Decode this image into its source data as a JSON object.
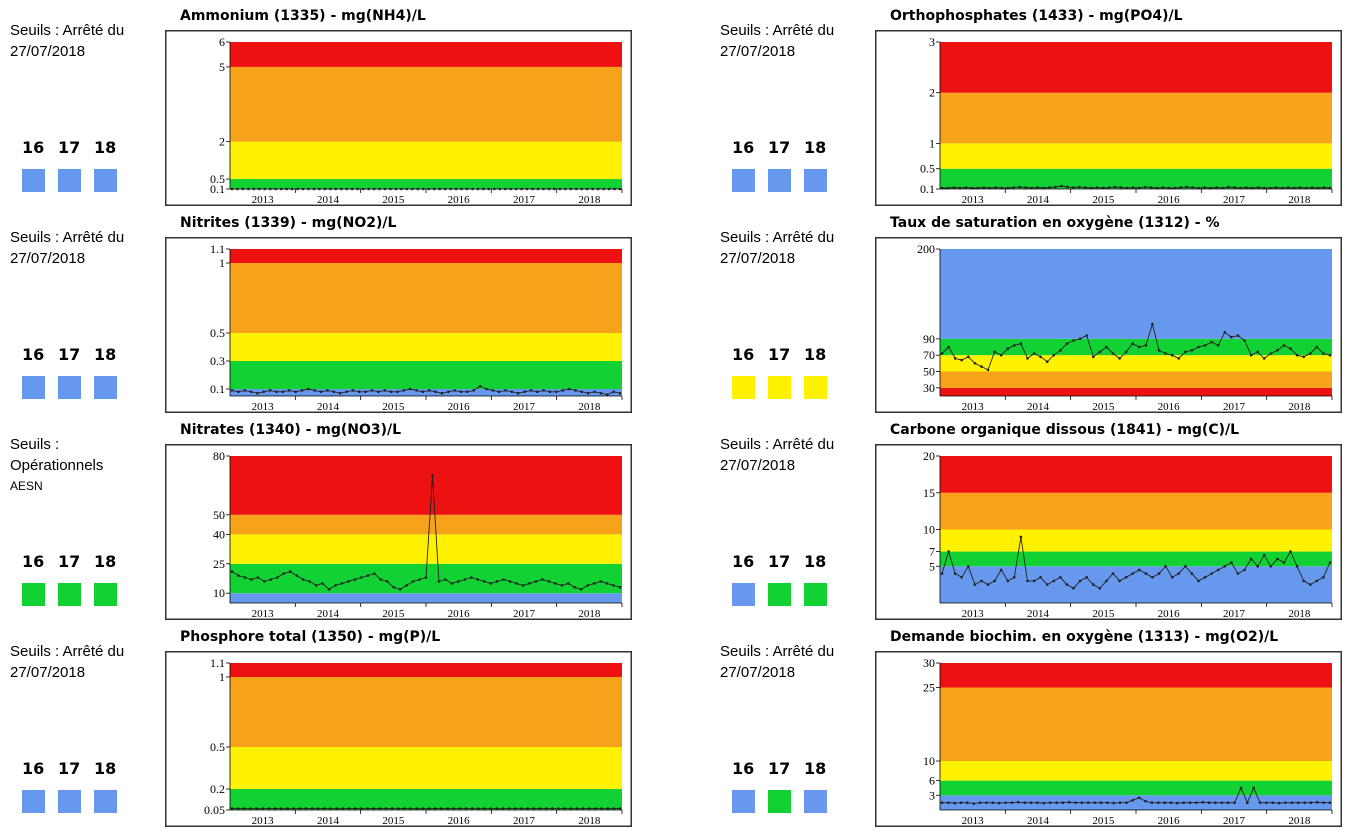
{
  "colors": {
    "red": "#ee1111",
    "orange": "#f7a21b",
    "yellow": "#fff200",
    "green": "#12d233",
    "blue": "#6699ee",
    "series": "#222222"
  },
  "years_header": [
    "16",
    "17",
    "18"
  ],
  "chart_data": [
    {
      "type": "line",
      "title": "Ammonium (1335) - mg(NH4)/L",
      "seuils": [
        "Seuils : Arrêté du",
        "27/07/2018"
      ],
      "square_colors": [
        "blue",
        "blue",
        "blue"
      ],
      "x_ticks": [
        "2013",
        "2014",
        "2015",
        "2016",
        "2017",
        "2018"
      ],
      "y_ticks": [
        "0.1",
        "0.5",
        "2",
        "5",
        "6"
      ],
      "ylim": [
        0.1,
        6
      ],
      "bands": [
        {
          "from": 0.1,
          "to": 0.5,
          "color": "green"
        },
        {
          "from": 0.5,
          "to": 2,
          "color": "yellow"
        },
        {
          "from": 2,
          "to": 5,
          "color": "orange"
        },
        {
          "from": 5,
          "to": 6,
          "color": "red"
        }
      ],
      "series": [
        {
          "values": [
            0.1,
            0.1,
            0.1,
            0.1,
            0.1,
            0.1,
            0.1,
            0.1,
            0.1,
            0.1,
            0.1,
            0.1,
            0.1,
            0.1,
            0.1,
            0.1,
            0.1,
            0.1,
            0.1,
            0.1,
            0.1,
            0.1,
            0.1,
            0.1,
            0.1,
            0.1,
            0.1,
            0.1,
            0.1,
            0.1,
            0.1,
            0.1,
            0.1,
            0.1,
            0.1,
            0.1,
            0.1,
            0.1,
            0.1,
            0.1,
            0.1,
            0.1,
            0.1,
            0.1,
            0.1,
            0.1,
            0.1,
            0.1,
            0.1,
            0.1,
            0.1,
            0.1,
            0.1,
            0.1,
            0.1,
            0.1,
            0.1,
            0.1,
            0.1,
            0.1,
            0.1,
            0.1,
            0.1,
            0.1,
            0.1,
            0.1,
            0.1,
            0.1,
            0.1,
            0.1,
            0.1,
            0.1
          ]
        }
      ]
    },
    {
      "type": "line",
      "title": "Orthophosphates (1433) - mg(PO4)/L",
      "seuils": [
        "Seuils : Arrêté du",
        "27/07/2018"
      ],
      "square_colors": [
        "blue",
        "blue",
        "blue"
      ],
      "x_ticks": [
        "2013",
        "2014",
        "2015",
        "2016",
        "2017",
        "2018"
      ],
      "y_ticks": [
        "0.1",
        "0.5",
        "1",
        "2",
        "3"
      ],
      "ylim": [
        0.1,
        3
      ],
      "bands": [
        {
          "from": 0.1,
          "to": 0.5,
          "color": "green"
        },
        {
          "from": 0.5,
          "to": 1,
          "color": "yellow"
        },
        {
          "from": 1,
          "to": 2,
          "color": "orange"
        },
        {
          "from": 2,
          "to": 3,
          "color": "red"
        }
      ],
      "series": [
        {
          "values": [
            0.12,
            0.12,
            0.13,
            0.12,
            0.13,
            0.12,
            0.12,
            0.13,
            0.12,
            0.13,
            0.12,
            0.12,
            0.13,
            0.14,
            0.13,
            0.12,
            0.13,
            0.12,
            0.13,
            0.14,
            0.16,
            0.14,
            0.13,
            0.14,
            0.13,
            0.12,
            0.13,
            0.12,
            0.13,
            0.14,
            0.13,
            0.12,
            0.13,
            0.12,
            0.14,
            0.13,
            0.12,
            0.13,
            0.12,
            0.12,
            0.13,
            0.14,
            0.13,
            0.12,
            0.13,
            0.12,
            0.13,
            0.12,
            0.14,
            0.13,
            0.12,
            0.13,
            0.12,
            0.13,
            0.12,
            0.12,
            0.13,
            0.12,
            0.13,
            0.12,
            0.13,
            0.12,
            0.13,
            0.12,
            0.13,
            0.12
          ]
        }
      ]
    },
    {
      "type": "line",
      "title": "Nitrites (1339) - mg(NO2)/L",
      "seuils": [
        "Seuils : Arrêté du",
        "27/07/2018"
      ],
      "square_colors": [
        "blue",
        "blue",
        "blue"
      ],
      "x_ticks": [
        "2013",
        "2014",
        "2015",
        "2016",
        "2017",
        "2018"
      ],
      "y_ticks": [
        "0.1",
        "0.3",
        "0.5",
        "1",
        "1.1"
      ],
      "ylim": [
        0.05,
        1.1
      ],
      "bands": [
        {
          "from": 0.05,
          "to": 0.1,
          "color": "blue"
        },
        {
          "from": 0.1,
          "to": 0.3,
          "color": "green"
        },
        {
          "from": 0.3,
          "to": 0.5,
          "color": "yellow"
        },
        {
          "from": 0.5,
          "to": 1,
          "color": "orange"
        },
        {
          "from": 1,
          "to": 1.1,
          "color": "red"
        }
      ],
      "series": [
        {
          "values": [
            0.09,
            0.08,
            0.09,
            0.08,
            0.07,
            0.08,
            0.09,
            0.08,
            0.08,
            0.09,
            0.08,
            0.09,
            0.1,
            0.09,
            0.08,
            0.09,
            0.08,
            0.07,
            0.08,
            0.09,
            0.08,
            0.08,
            0.09,
            0.08,
            0.09,
            0.08,
            0.08,
            0.09,
            0.1,
            0.09,
            0.08,
            0.09,
            0.08,
            0.07,
            0.08,
            0.09,
            0.08,
            0.08,
            0.09,
            0.12,
            0.1,
            0.09,
            0.08,
            0.09,
            0.08,
            0.07,
            0.08,
            0.09,
            0.08,
            0.09,
            0.08,
            0.08,
            0.09,
            0.1,
            0.09,
            0.08,
            0.07,
            0.08,
            0.07,
            0.06,
            0.08,
            0.07
          ]
        }
      ]
    },
    {
      "type": "line",
      "title": "Taux de saturation en oxygène (1312) - %",
      "seuils": [
        "Seuils : Arrêté du",
        "27/07/2018"
      ],
      "square_colors": [
        "yellow",
        "yellow",
        "yellow"
      ],
      "x_ticks": [
        "2013",
        "2014",
        "2015",
        "2016",
        "2017",
        "2018"
      ],
      "y_ticks": [
        "30",
        "50",
        "70",
        "90",
        "200"
      ],
      "ylim": [
        20,
        200
      ],
      "bands": [
        {
          "from": 20,
          "to": 30,
          "color": "red"
        },
        {
          "from": 30,
          "to": 50,
          "color": "orange"
        },
        {
          "from": 50,
          "to": 70,
          "color": "yellow"
        },
        {
          "from": 70,
          "to": 90,
          "color": "green"
        },
        {
          "from": 90,
          "to": 200,
          "color": "blue"
        }
      ],
      "series": [
        {
          "values": [
            72,
            80,
            66,
            64,
            68,
            60,
            56,
            52,
            74,
            70,
            78,
            82,
            84,
            66,
            72,
            68,
            62,
            70,
            76,
            84,
            88,
            90,
            94,
            68,
            74,
            80,
            72,
            66,
            74,
            84,
            80,
            82,
            108,
            76,
            72,
            70,
            66,
            74,
            76,
            80,
            82,
            86,
            82,
            98,
            92,
            94,
            88,
            70,
            74,
            66,
            72,
            76,
            82,
            78,
            70,
            68,
            72,
            80,
            72,
            70
          ]
        }
      ]
    },
    {
      "type": "line",
      "title": "Nitrates (1340) - mg(NO3)/L",
      "seuils": [
        "Seuils :",
        "Opérationnels",
        "AESN"
      ],
      "square_colors": [
        "green",
        "green",
        "green"
      ],
      "x_ticks": [
        "2013",
        "2014",
        "2015",
        "2016",
        "2017",
        "2018"
      ],
      "y_ticks": [
        "10",
        "25",
        "40",
        "50",
        "80"
      ],
      "ylim": [
        5,
        80
      ],
      "bands": [
        {
          "from": 5,
          "to": 10,
          "color": "blue"
        },
        {
          "from": 10,
          "to": 25,
          "color": "green"
        },
        {
          "from": 25,
          "to": 40,
          "color": "yellow"
        },
        {
          "from": 40,
          "to": 50,
          "color": "orange"
        },
        {
          "from": 50,
          "to": 80,
          "color": "red"
        }
      ],
      "series": [
        {
          "values": [
            21,
            19,
            18,
            17,
            18,
            16,
            17,
            18,
            20,
            21,
            19,
            17,
            16,
            14,
            15,
            12,
            14,
            15,
            16,
            17,
            18,
            19,
            20,
            17,
            16,
            13,
            12,
            14,
            16,
            17,
            18,
            70,
            16,
            17,
            15,
            16,
            17,
            18,
            17,
            16,
            15,
            16,
            17,
            16,
            15,
            14,
            15,
            16,
            17,
            16,
            15,
            14,
            15,
            13,
            12,
            14,
            15,
            16,
            15,
            14,
            13
          ]
        }
      ]
    },
    {
      "type": "line",
      "title": "Carbone organique dissous (1841) - mg(C)/L",
      "seuils": [
        "Seuils : Arrêté du",
        "27/07/2018"
      ],
      "square_colors": [
        "blue",
        "green",
        "green"
      ],
      "x_ticks": [
        "2013",
        "2014",
        "2015",
        "2016",
        "2017",
        "2018"
      ],
      "y_ticks": [
        "5",
        "7",
        "10",
        "15",
        "20"
      ],
      "ylim": [
        0,
        20
      ],
      "bands": [
        {
          "from": 0,
          "to": 5,
          "color": "blue"
        },
        {
          "from": 5,
          "to": 7,
          "color": "green"
        },
        {
          "from": 7,
          "to": 10,
          "color": "yellow"
        },
        {
          "from": 10,
          "to": 15,
          "color": "orange"
        },
        {
          "from": 15,
          "to": 20,
          "color": "red"
        }
      ],
      "series": [
        {
          "values": [
            4,
            7,
            4,
            3.5,
            5,
            2.5,
            3,
            2.5,
            3,
            4.5,
            3,
            3.5,
            9,
            3,
            3,
            3.5,
            2.5,
            3,
            3.5,
            2.5,
            2,
            3,
            3.5,
            2.5,
            2,
            3,
            4,
            3,
            3.5,
            4,
            4.5,
            4,
            3.5,
            4,
            5,
            3.5,
            4,
            5,
            4,
            3,
            3.5,
            4,
            4.5,
            5,
            5.5,
            4,
            4.5,
            6,
            5,
            6.5,
            5,
            6,
            5.5,
            7,
            5,
            3,
            2.5,
            3,
            3.5,
            5.5
          ]
        }
      ]
    },
    {
      "type": "line",
      "title": "Phosphore total (1350) - mg(P)/L",
      "seuils": [
        "Seuils : Arrêté du",
        "27/07/2018"
      ],
      "square_colors": [
        "blue",
        "blue",
        "blue"
      ],
      "x_ticks": [
        "2013",
        "2014",
        "2015",
        "2016",
        "2017",
        "2018"
      ],
      "y_ticks": [
        "0.05",
        "0.2",
        "0.5",
        "1",
        "1.1"
      ],
      "ylim": [
        0.05,
        1.1
      ],
      "bands": [
        {
          "from": 0.05,
          "to": 0.2,
          "color": "green"
        },
        {
          "from": 0.2,
          "to": 0.5,
          "color": "yellow"
        },
        {
          "from": 0.5,
          "to": 1,
          "color": "orange"
        },
        {
          "from": 1,
          "to": 1.1,
          "color": "red"
        }
      ],
      "series": [
        {
          "values": [
            0.06,
            0.06,
            0.06,
            0.06,
            0.06,
            0.06,
            0.06,
            0.06,
            0.06,
            0.06,
            0.06,
            0.06,
            0.06,
            0.06,
            0.06,
            0.06,
            0.06,
            0.06,
            0.06,
            0.06,
            0.06,
            0.06,
            0.06,
            0.06,
            0.06,
            0.06,
            0.06,
            0.06,
            0.06,
            0.06,
            0.06,
            0.06,
            0.06,
            0.06,
            0.06,
            0.06,
            0.06,
            0.06,
            0.06,
            0.06,
            0.06,
            0.06,
            0.06,
            0.06,
            0.06,
            0.06,
            0.06,
            0.06,
            0.06,
            0.06,
            0.06,
            0.06,
            0.06,
            0.06,
            0.06,
            0.06,
            0.06,
            0.06,
            0.06,
            0.06,
            0.06,
            0.06,
            0.06,
            0.06
          ]
        }
      ]
    },
    {
      "type": "line",
      "title": "Demande biochim. en oxygène (1313) - mg(O2)/L",
      "seuils": [
        "Seuils : Arrêté du",
        "27/07/2018"
      ],
      "square_colors": [
        "blue",
        "green",
        "blue"
      ],
      "x_ticks": [
        "2013",
        "2014",
        "2015",
        "2016",
        "2017",
        "2018"
      ],
      "y_ticks": [
        "3",
        "6",
        "10",
        "25",
        "30"
      ],
      "ylim": [
        0,
        30
      ],
      "bands": [
        {
          "from": 0,
          "to": 3,
          "color": "blue"
        },
        {
          "from": 3,
          "to": 6,
          "color": "green"
        },
        {
          "from": 6,
          "to": 10,
          "color": "yellow"
        },
        {
          "from": 10,
          "to": 25,
          "color": "orange"
        },
        {
          "from": 25,
          "to": 30,
          "color": "red"
        }
      ],
      "series": [
        {
          "values": [
            1.5,
            1.5,
            1.4,
            1.5,
            1.5,
            1.3,
            1.5,
            1.5,
            1.5,
            1.4,
            1.5,
            1.5,
            1.6,
            1.5,
            1.5,
            1.5,
            1.4,
            1.5,
            1.5,
            1.5,
            1.6,
            1.5,
            1.5,
            1.5,
            1.5,
            1.5,
            1.5,
            1.4,
            1.5,
            1.5,
            2.0,
            2.5,
            1.8,
            1.5,
            1.5,
            1.5,
            1.5,
            1.4,
            1.5,
            1.5,
            1.5,
            1.6,
            1.5,
            1.5,
            1.5,
            1.5,
            1.5,
            4.5,
            1.5,
            4.5,
            1.5,
            1.5,
            1.5,
            1.4,
            1.5,
            1.5,
            1.5,
            1.5,
            1.5,
            1.6,
            1.5,
            1.5
          ]
        }
      ]
    }
  ]
}
